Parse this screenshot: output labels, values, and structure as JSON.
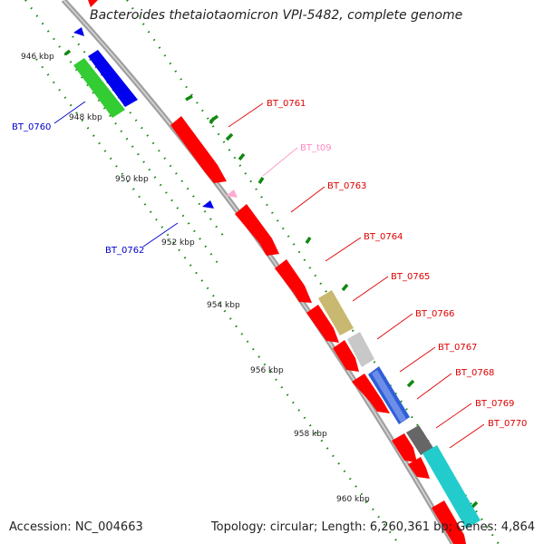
{
  "title": "Bacteroides thetaiotaomicron VPI-5482, complete genome",
  "footer": {
    "accession": "Accession: NC_004663",
    "summary": "Topology: circular; Length: 6,260,361 bp; Genes: 4,864"
  },
  "ticks": [
    "946 kbp",
    "948 kbp",
    "950 kbp",
    "952 kbp",
    "954 kbp",
    "956 kbp",
    "958 kbp",
    "960 kbp"
  ],
  "genes": [
    {
      "label": "BT_0760",
      "strand": "reverse"
    },
    {
      "label": "BT_0761",
      "strand": "forward"
    },
    {
      "label": "BT_t09",
      "strand": "forward",
      "type": "tRNA"
    },
    {
      "label": "BT_0762",
      "strand": "reverse"
    },
    {
      "label": "BT_0763",
      "strand": "forward"
    },
    {
      "label": "BT_0764",
      "strand": "forward"
    },
    {
      "label": "BT_0765",
      "strand": "forward"
    },
    {
      "label": "BT_0766",
      "strand": "forward"
    },
    {
      "label": "BT_0767",
      "strand": "forward"
    },
    {
      "label": "BT_0768",
      "strand": "forward"
    },
    {
      "label": "BT_0769",
      "strand": "forward"
    },
    {
      "label": "BT_0770",
      "strand": "forward"
    }
  ],
  "colors": {
    "forward_gene": "#ff0000",
    "reverse_gene": "#0000ff",
    "trna": "#ff99cc",
    "backbone": "#999999",
    "gc_dots": "#007700"
  }
}
